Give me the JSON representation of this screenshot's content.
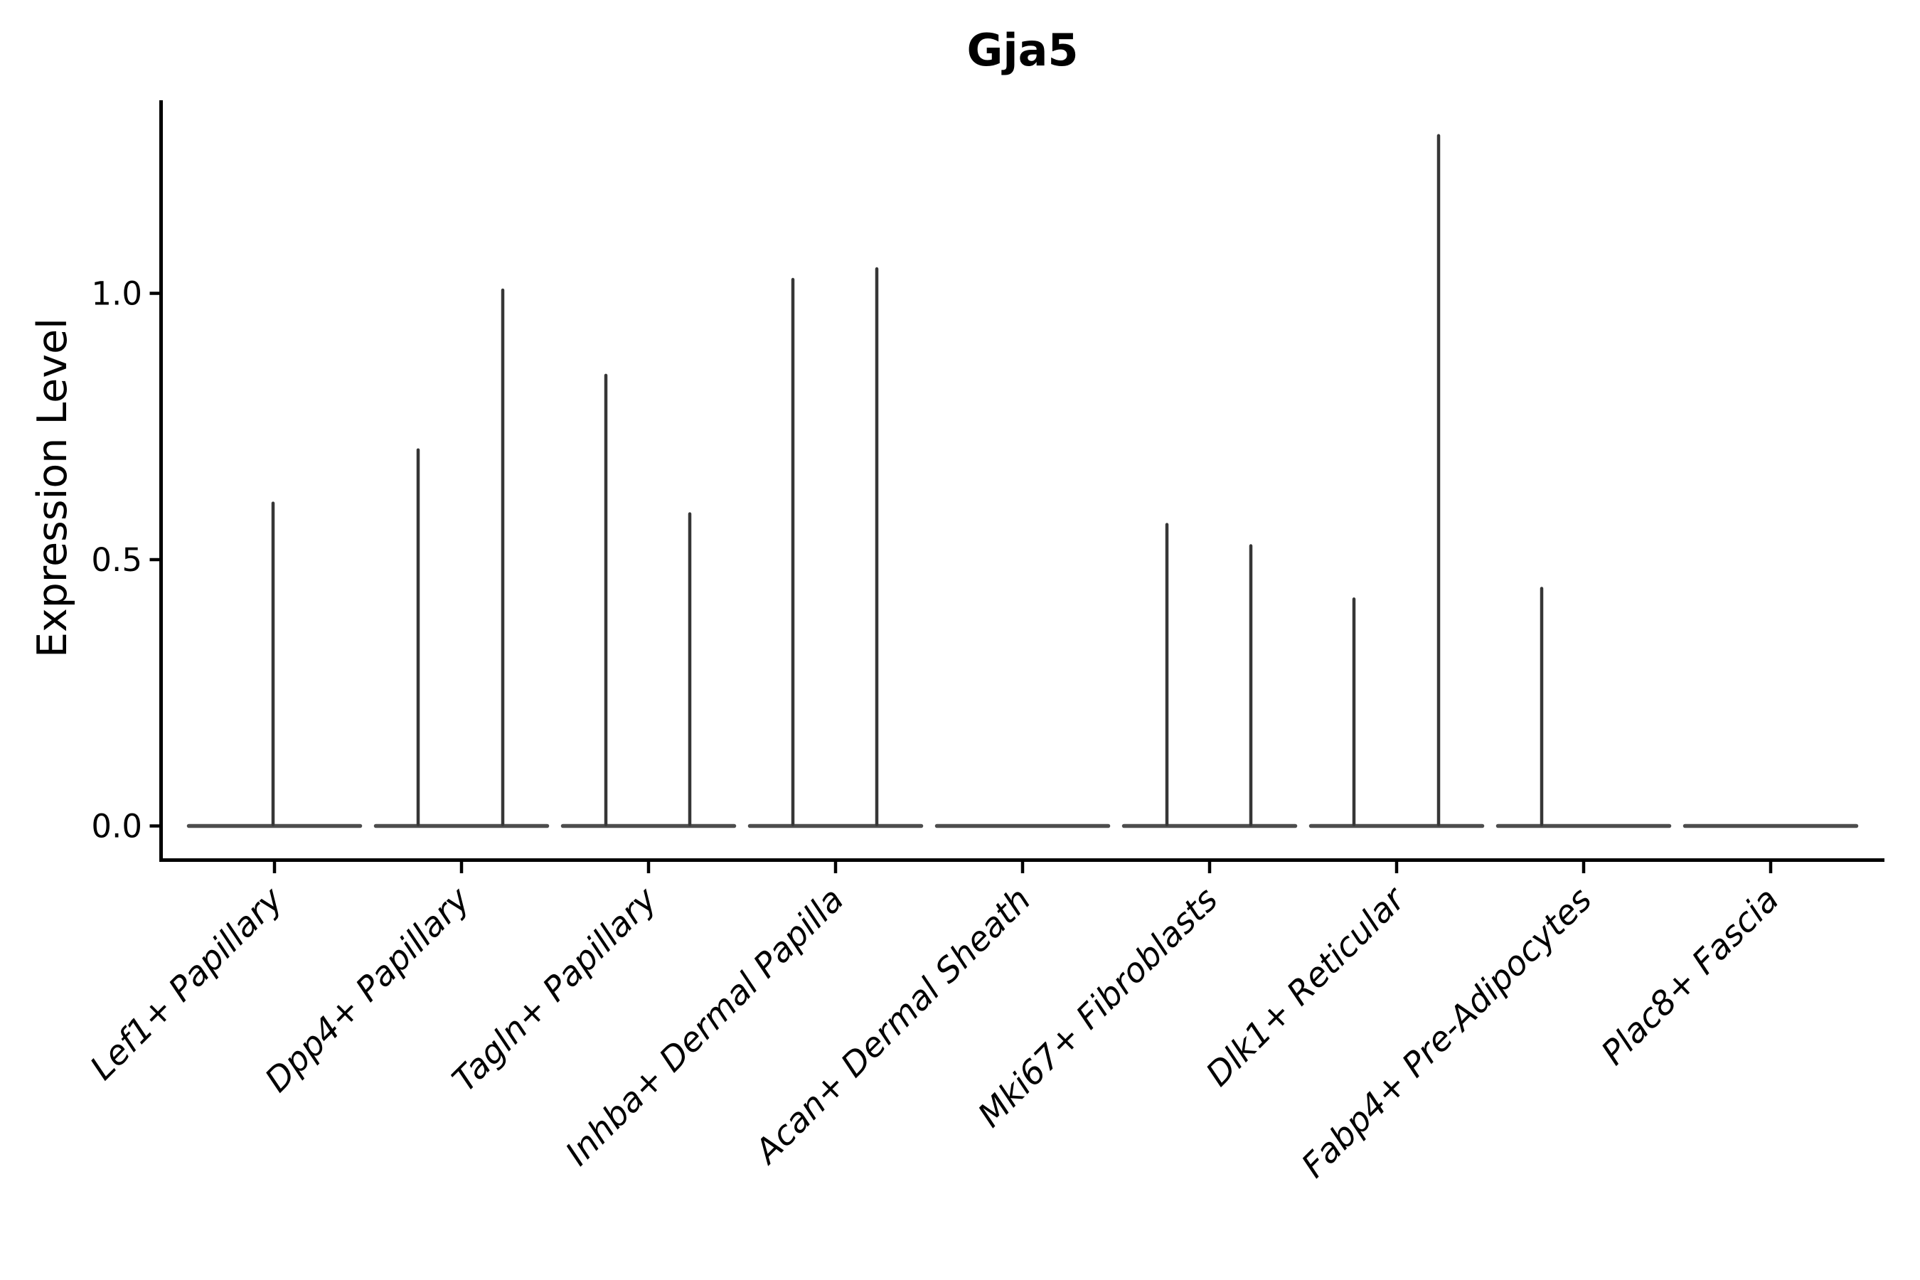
{
  "figure": {
    "background": "#ffffff",
    "axis_color": "#000000",
    "violin_color": "#363636",
    "baseline_color": "#4d4d4d"
  },
  "chart_data": {
    "type": "violin",
    "title": "Gja5",
    "xlabel": "",
    "ylabel": "Expression Level",
    "grid": false,
    "legend": "none",
    "spines": [
      "left",
      "bottom"
    ],
    "ylim": [
      -0.06,
      1.36
    ],
    "yticks": [
      {
        "label": "0.0",
        "value": 0.0
      },
      {
        "label": "0.5",
        "value": 0.5
      },
      {
        "label": "1.0",
        "value": 1.0
      }
    ],
    "xtick_label_rotation_deg": 45,
    "categories": [
      "Lef1+ Papillary",
      "Dpp4+ Papillary",
      "Tagln+ Papillary",
      "Inhba+ Dermal Papilla",
      "Acan+ Dermal Sheath",
      "Mki67+ Fibroblasts",
      "Dlk1+ Reticular",
      "Fabp4+ Pre-Adipocytes",
      "Plac8+ Fascia"
    ],
    "series": [
      {
        "name": "Lef1+ Papillary",
        "baseline_value": 0.0,
        "spikes": [
          {
            "dx": -2,
            "value": 0.61
          }
        ]
      },
      {
        "name": "Dpp4+ Papillary",
        "baseline_value": 0.0,
        "spikes": [
          {
            "dx": -61,
            "value": 0.71
          },
          {
            "dx": 58,
            "value": 1.01
          }
        ]
      },
      {
        "name": "Tagln+ Papillary",
        "baseline_value": 0.0,
        "spikes": [
          {
            "dx": -60,
            "value": 0.85
          },
          {
            "dx": 58,
            "value": 0.59
          }
        ]
      },
      {
        "name": "Inhba+ Dermal Papilla",
        "baseline_value": 0.0,
        "spikes": [
          {
            "dx": -60,
            "value": 1.03
          },
          {
            "dx": 58,
            "value": 1.05
          }
        ]
      },
      {
        "name": "Acan+ Dermal Sheath",
        "baseline_value": 0.0,
        "spikes": []
      },
      {
        "name": "Mki67+ Fibroblasts",
        "baseline_value": 0.0,
        "spikes": [
          {
            "dx": -60,
            "value": 0.57
          },
          {
            "dx": 58,
            "value": 0.53
          }
        ]
      },
      {
        "name": "Dlk1+ Reticular",
        "baseline_value": 0.0,
        "spikes": [
          {
            "dx": -60,
            "value": 0.43
          },
          {
            "dx": 59,
            "value": 1.3
          }
        ]
      },
      {
        "name": "Fabp4+ Pre-Adipocytes",
        "baseline_value": 0.0,
        "spikes": [
          {
            "dx": -59,
            "value": 0.45
          }
        ]
      },
      {
        "name": "Plac8+ Fascia",
        "baseline_value": 0.0,
        "spikes": []
      }
    ]
  }
}
